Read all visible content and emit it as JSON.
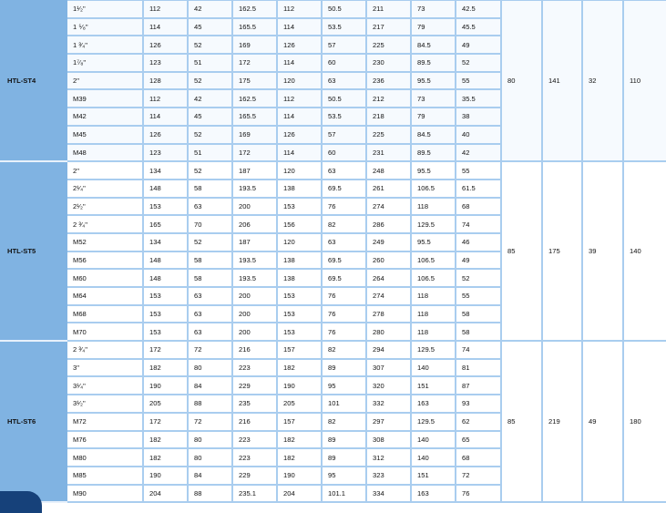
{
  "colors": {
    "model_column": "#80b3e2",
    "grid": "#a9cdef",
    "corner_tab": "#16417a"
  },
  "blocks": [
    {
      "model": "HTL-ST4",
      "merged": [
        "80",
        "141",
        "32",
        "110"
      ],
      "rows": [
        [
          "1¹⁄₂\"",
          "112",
          "42",
          "162.5",
          "112",
          "50.5",
          "211",
          "73",
          "42.5"
        ],
        [
          "1 ⁵⁄₈\"",
          "114",
          "45",
          "165.5",
          "114",
          "53.5",
          "217",
          "79",
          "45.5"
        ],
        [
          "1 ³⁄₄\"",
          "126",
          "52",
          "169",
          "126",
          "57",
          "225",
          "84.5",
          "49"
        ],
        [
          "1⁷⁄₈\"",
          "123",
          "51",
          "172",
          "114",
          "60",
          "230",
          "89.5",
          "52"
        ],
        [
          "2\"",
          "128",
          "52",
          "175",
          "120",
          "63",
          "236",
          "95.5",
          "55"
        ],
        [
          "M39",
          "112",
          "42",
          "162.5",
          "112",
          "50.5",
          "212",
          "73",
          "35.5"
        ],
        [
          "M42",
          "114",
          "45",
          "165.5",
          "114",
          "53.5",
          "218",
          "79",
          "38"
        ],
        [
          "M45",
          "126",
          "52",
          "169",
          "126",
          "57",
          "225",
          "84.5",
          "40"
        ],
        [
          "M48",
          "123",
          "51",
          "172",
          "114",
          "60",
          "231",
          "89.5",
          "42"
        ]
      ]
    },
    {
      "model": "HTL-ST5",
      "merged": [
        "85",
        "175",
        "39",
        "140"
      ],
      "rows": [
        [
          "2\"",
          "134",
          "52",
          "187",
          "120",
          "63",
          "248",
          "95.5",
          "55"
        ],
        [
          "2¹⁄₄\"",
          "148",
          "58",
          "193.5",
          "138",
          "69.5",
          "261",
          "106.5",
          "61.5"
        ],
        [
          "2¹⁄₂\"",
          "153",
          "63",
          "200",
          "153",
          "76",
          "274",
          "118",
          "68"
        ],
        [
          "2 ³⁄₄\"",
          "165",
          "70",
          "206",
          "156",
          "82",
          "286",
          "129.5",
          "74"
        ],
        [
          "M52",
          "134",
          "52",
          "187",
          "120",
          "63",
          "249",
          "95.5",
          "46"
        ],
        [
          "M56",
          "148",
          "58",
          "193.5",
          "138",
          "69.5",
          "260",
          "106.5",
          "49"
        ],
        [
          "M60",
          "148",
          "58",
          "193.5",
          "138",
          "69.5",
          "264",
          "106.5",
          "52"
        ],
        [
          "M64",
          "153",
          "63",
          "200",
          "153",
          "76",
          "274",
          "118",
          "55"
        ],
        [
          "M68",
          "153",
          "63",
          "200",
          "153",
          "76",
          "278",
          "118",
          "58"
        ],
        [
          "M70",
          "153",
          "63",
          "200",
          "153",
          "76",
          "280",
          "118",
          "58"
        ]
      ]
    },
    {
      "model": "HTL-ST6",
      "merged": [
        "85",
        "219",
        "49",
        "180"
      ],
      "rows": [
        [
          "2 ³⁄₄\"",
          "172",
          "72",
          "216",
          "157",
          "82",
          "294",
          "129.5",
          "74"
        ],
        [
          "3\"",
          "182",
          "80",
          "223",
          "182",
          "89",
          "307",
          "140",
          "81"
        ],
        [
          "3¹⁄₄\"",
          "190",
          "84",
          "229",
          "190",
          "95",
          "320",
          "151",
          "87"
        ],
        [
          "3¹⁄₂\"",
          "205",
          "88",
          "235",
          "205",
          "101",
          "332",
          "163",
          "93"
        ],
        [
          "M72",
          "172",
          "72",
          "216",
          "157",
          "82",
          "297",
          "129.5",
          "62"
        ],
        [
          "M76",
          "182",
          "80",
          "223",
          "182",
          "89",
          "308",
          "140",
          "65"
        ],
        [
          "M80",
          "182",
          "80",
          "223",
          "182",
          "89",
          "312",
          "140",
          "68"
        ],
        [
          "M85",
          "190",
          "84",
          "229",
          "190",
          "95",
          "323",
          "151",
          "72"
        ],
        [
          "M90",
          "204",
          "88",
          "235.1",
          "204",
          "101.1",
          "334",
          "163",
          "76"
        ]
      ]
    }
  ]
}
